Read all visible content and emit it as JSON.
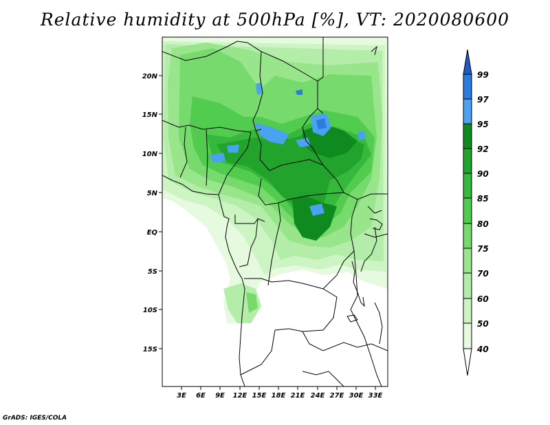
{
  "title": "Relative humidity at 500hPa [%], VT: 2020080600",
  "footer": "GrADS: IGES/COLA",
  "map": {
    "lat_labels": [
      "20N",
      "15N",
      "10N",
      "5N",
      "EQ",
      "5S",
      "10S",
      "15S"
    ],
    "lon_labels": [
      "3E",
      "6E",
      "9E",
      "12E",
      "15E",
      "18E",
      "21E",
      "24E",
      "27E",
      "30E",
      "33E"
    ]
  },
  "colorbar": {
    "labels": [
      "99",
      "97",
      "95",
      "92",
      "90",
      "85",
      "80",
      "75",
      "70",
      "60",
      "50",
      "40"
    ],
    "colors": {
      "above_99": "#1f5ac8",
      "97_99": "#2b7ce0",
      "95_97": "#4aa2f0",
      "92_95": "#0f8a1e",
      "90_92": "#22a32c",
      "85_90": "#36b83c",
      "80_85": "#52cc4e",
      "75_80": "#76da6c",
      "70_75": "#98e58c",
      "60_70": "#b4edaa",
      "50_60": "#cdf4c3",
      "40_50": "#e6fae0",
      "below_40": "#ffffff"
    }
  }
}
